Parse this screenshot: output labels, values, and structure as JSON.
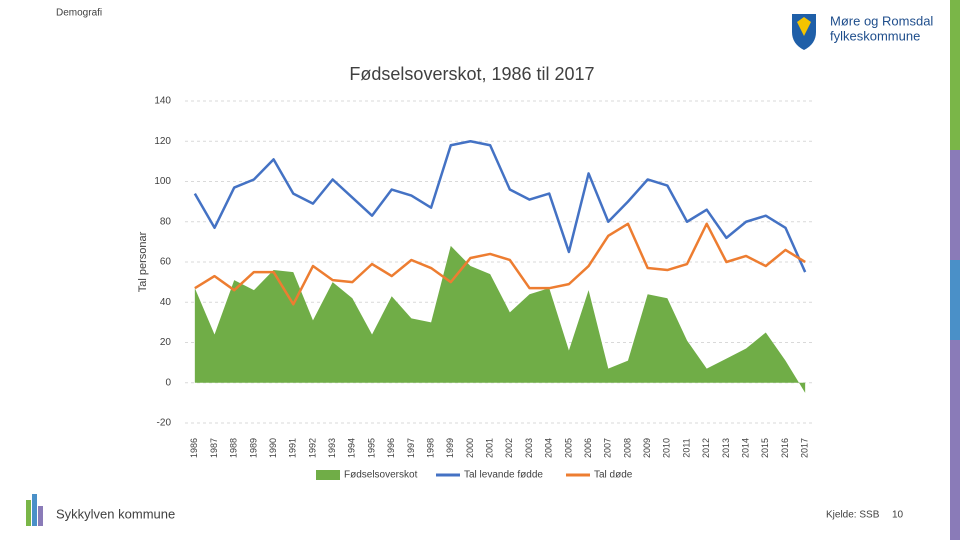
{
  "header": {
    "section": "Demografi",
    "logo": [
      "Møre og Romsdal",
      "fylkeskommune"
    ]
  },
  "footer": {
    "municipality": "Sykkylven kommune",
    "source": "Kjelde: SSB",
    "page": "10"
  },
  "chart_data": {
    "type": "combo",
    "title": "Fødselsoverskot, 1986 til 2017",
    "y_label": "Tal personar",
    "categories": [
      "1986",
      "1987",
      "1988",
      "1989",
      "1990",
      "1991",
      "1992",
      "1993",
      "1994",
      "1995",
      "1996",
      "1997",
      "1998",
      "1999",
      "2000",
      "2001",
      "2002",
      "2003",
      "2004",
      "2005",
      "2006",
      "2007",
      "2008",
      "2009",
      "2010",
      "2011",
      "2012",
      "2013",
      "2014",
      "2015",
      "2016",
      "2017"
    ],
    "series": [
      {
        "name": "Fødselsoverskot",
        "mark": "area",
        "color": "#70ad47",
        "values": [
          47,
          24,
          51,
          46,
          56,
          55,
          31,
          50,
          42,
          24,
          43,
          32,
          30,
          68,
          58,
          54,
          35,
          44,
          47,
          16,
          46,
          7,
          11,
          44,
          42,
          21,
          7,
          12,
          17,
          25,
          11,
          -5
        ]
      },
      {
        "name": "Tal levande fødde",
        "mark": "line",
        "color": "#4472c4",
        "values": [
          94,
          77,
          97,
          101,
          111,
          94,
          89,
          101,
          92,
          83,
          96,
          93,
          87,
          118,
          120,
          118,
          96,
          91,
          94,
          65,
          104,
          80,
          90,
          101,
          98,
          80,
          86,
          72,
          80,
          83,
          77,
          55
        ]
      },
      {
        "name": "Tal døde",
        "mark": "line",
        "color": "#ed7d31",
        "values": [
          47,
          53,
          46,
          55,
          55,
          39,
          58,
          51,
          50,
          59,
          53,
          61,
          57,
          50,
          62,
          64,
          61,
          47,
          47,
          49,
          58,
          73,
          79,
          57,
          56,
          59,
          79,
          60,
          63,
          58,
          66,
          60
        ]
      }
    ],
    "ylim": [
      -20,
      140
    ],
    "yticks": [
      -20,
      0,
      20,
      40,
      60,
      80,
      100,
      120,
      140
    ],
    "grid": true,
    "legend": "bottom"
  }
}
